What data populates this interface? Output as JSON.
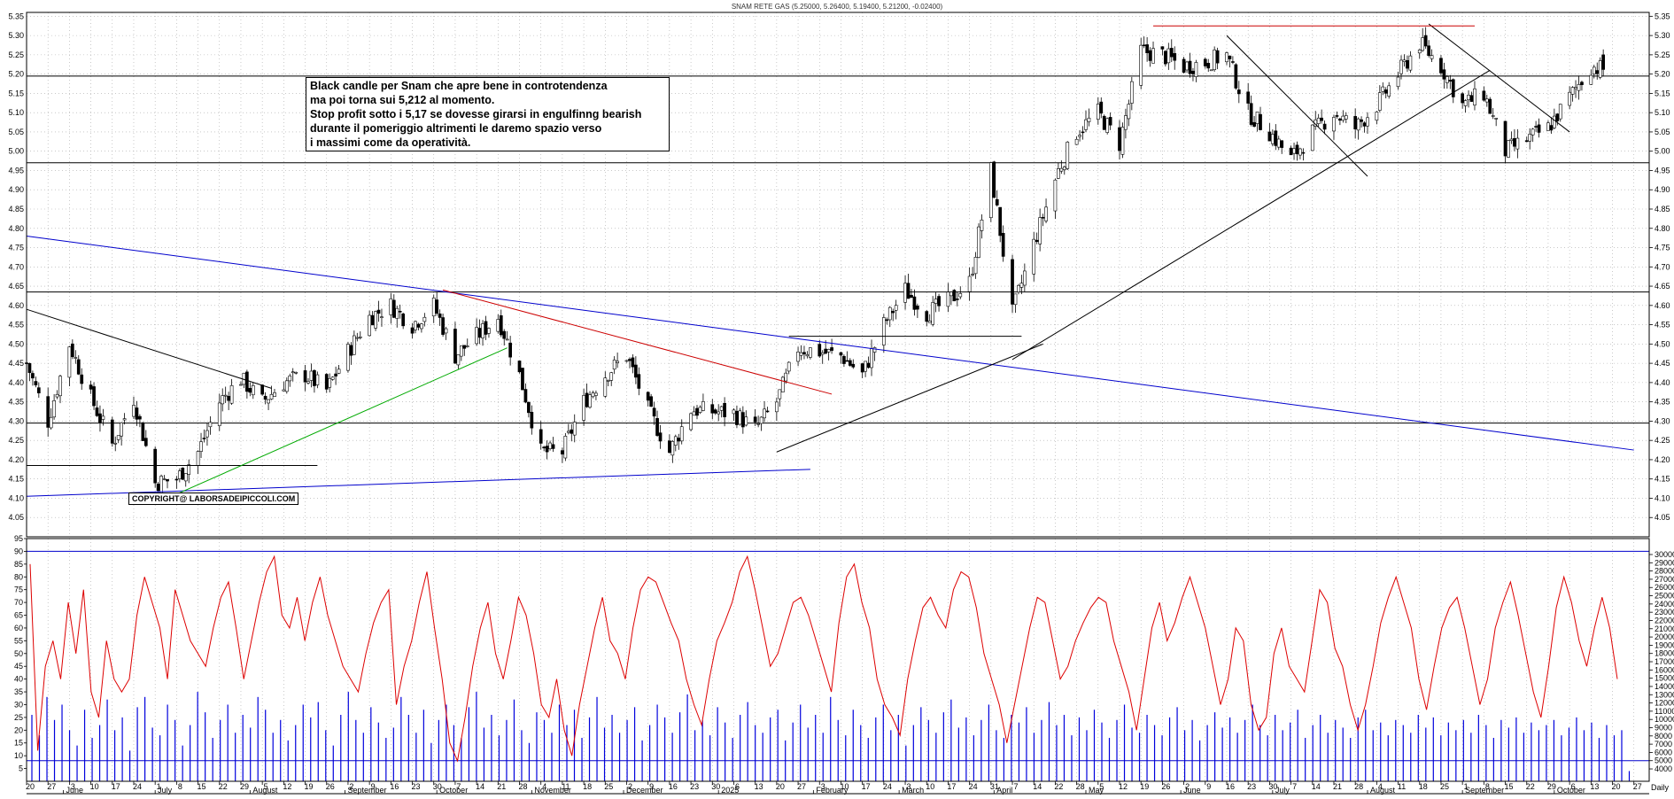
{
  "chart_data": [
    {
      "type": "candlestick",
      "title": "SNAM RETE GAS (5.25000, 5.26400, 5.19400, 5.21200, -0.02400)",
      "xlabel": "",
      "ylabel": "",
      "ylim": [
        4.0,
        5.36
      ],
      "y_ticks": [
        "4.05",
        "4.10",
        "4.15",
        "4.20",
        "4.25",
        "4.30",
        "4.35",
        "4.40",
        "4.45",
        "4.50",
        "4.55",
        "4.60",
        "4.65",
        "4.70",
        "4.75",
        "4.80",
        "4.85",
        "4.90",
        "4.95",
        "5.00",
        "5.05",
        "5.10",
        "5.15",
        "5.20",
        "5.25",
        "5.30",
        "5.35"
      ],
      "horizontal_levels": [
        4.97,
        5.195,
        4.635,
        4.295
      ],
      "close_path": [
        {
          "x": "2024-05-20",
          "y": 4.45
        },
        {
          "x": "2024-05-27",
          "y": 4.3
        },
        {
          "x": "2024-06-03",
          "y": 4.5
        },
        {
          "x": "2024-06-10",
          "y": 4.36
        },
        {
          "x": "2024-06-17",
          "y": 4.24
        },
        {
          "x": "2024-06-24",
          "y": 4.36
        },
        {
          "x": "2024-07-01",
          "y": 4.14
        },
        {
          "x": "2024-07-08",
          "y": 4.15
        },
        {
          "x": "2024-07-15",
          "y": 4.22
        },
        {
          "x": "2024-07-22",
          "y": 4.35
        },
        {
          "x": "2024-07-29",
          "y": 4.41
        },
        {
          "x": "2024-08-05",
          "y": 4.35
        },
        {
          "x": "2024-08-12",
          "y": 4.4
        },
        {
          "x": "2024-08-19",
          "y": 4.42
        },
        {
          "x": "2024-08-26",
          "y": 4.38
        },
        {
          "x": "2024-09-02",
          "y": 4.48
        },
        {
          "x": "2024-09-09",
          "y": 4.57
        },
        {
          "x": "2024-09-16",
          "y": 4.6
        },
        {
          "x": "2024-09-23",
          "y": 4.55
        },
        {
          "x": "2024-09-30",
          "y": 4.6
        },
        {
          "x": "2024-10-07",
          "y": 4.47
        },
        {
          "x": "2024-10-14",
          "y": 4.52
        },
        {
          "x": "2024-10-21",
          "y": 4.57
        },
        {
          "x": "2024-10-28",
          "y": 4.42
        },
        {
          "x": "2024-11-04",
          "y": 4.22
        },
        {
          "x": "2024-11-11",
          "y": 4.22
        },
        {
          "x": "2024-11-18",
          "y": 4.35
        },
        {
          "x": "2024-11-25",
          "y": 4.42
        },
        {
          "x": "2024-12-02",
          "y": 4.47
        },
        {
          "x": "2024-12-09",
          "y": 4.33
        },
        {
          "x": "2024-12-16",
          "y": 4.22
        },
        {
          "x": "2024-12-23",
          "y": 4.33
        },
        {
          "x": "2025-01-06",
          "y": 4.32
        },
        {
          "x": "2025-01-13",
          "y": 4.28
        },
        {
          "x": "2025-01-20",
          "y": 4.35
        },
        {
          "x": "2025-01-27",
          "y": 4.49
        },
        {
          "x": "2025-02-03",
          "y": 4.48
        },
        {
          "x": "2025-02-10",
          "y": 4.47
        },
        {
          "x": "2025-02-17",
          "y": 4.42
        },
        {
          "x": "2025-02-24",
          "y": 4.55
        },
        {
          "x": "2025-03-03",
          "y": 4.64
        },
        {
          "x": "2025-03-10",
          "y": 4.58
        },
        {
          "x": "2025-03-17",
          "y": 4.61
        },
        {
          "x": "2025-03-24",
          "y": 4.66
        },
        {
          "x": "2025-03-31",
          "y": 4.95
        },
        {
          "x": "2025-04-07",
          "y": 4.58
        },
        {
          "x": "2025-04-14",
          "y": 4.76
        },
        {
          "x": "2025-04-22",
          "y": 4.95
        },
        {
          "x": "2025-04-28",
          "y": 5.05
        },
        {
          "x": "2025-05-05",
          "y": 5.1
        },
        {
          "x": "2025-05-12",
          "y": 5.02
        },
        {
          "x": "2025-05-19",
          "y": 5.26
        },
        {
          "x": "2025-05-26",
          "y": 5.25
        },
        {
          "x": "2025-06-02",
          "y": 5.22
        },
        {
          "x": "2025-06-09",
          "y": 5.23
        },
        {
          "x": "2025-06-16",
          "y": 5.25
        },
        {
          "x": "2025-06-23",
          "y": 5.1
        },
        {
          "x": "2025-06-30",
          "y": 5.05
        },
        {
          "x": "2025-07-07",
          "y": 4.98
        },
        {
          "x": "2025-07-14",
          "y": 5.05
        },
        {
          "x": "2025-07-21",
          "y": 5.1
        },
        {
          "x": "2025-07-28",
          "y": 5.06
        },
        {
          "x": "2025-08-04",
          "y": 5.12
        },
        {
          "x": "2025-08-11",
          "y": 5.2
        },
        {
          "x": "2025-08-18",
          "y": 5.28
        },
        {
          "x": "2025-08-25",
          "y": 5.22
        },
        {
          "x": "2025-09-01",
          "y": 5.12
        },
        {
          "x": "2025-09-08",
          "y": 5.15
        },
        {
          "x": "2025-09-15",
          "y": 5.0
        },
        {
          "x": "2025-09-22",
          "y": 5.03
        },
        {
          "x": "2025-09-29",
          "y": 5.06
        },
        {
          "x": "2025-10-06",
          "y": 5.14
        },
        {
          "x": "2025-10-13",
          "y": 5.22
        },
        {
          "x": "2025-10-17",
          "y": 5.212
        }
      ],
      "trendlines": [
        {
          "color": "#0000cc",
          "points": [
            {
              "x": "2024-05-20",
              "y": 4.78
            },
            {
              "x": "2025-10-27",
              "y": 4.225
            }
          ]
        },
        {
          "color": "#0000cc",
          "points": [
            {
              "x": "2024-05-20",
              "y": 4.105
            },
            {
              "x": "2025-01-31",
              "y": 4.175
            }
          ]
        },
        {
          "color": "#000000",
          "points": [
            {
              "x": "2024-05-20",
              "y": 4.59
            },
            {
              "x": "2024-08-08",
              "y": 4.385
            }
          ]
        },
        {
          "color": "#000000",
          "points": [
            {
              "x": "2024-05-20",
              "y": 4.185
            },
            {
              "x": "2024-08-23",
              "y": 4.185
            }
          ]
        },
        {
          "color": "#00aa00",
          "points": [
            {
              "x": "2024-07-05",
              "y": 4.1
            },
            {
              "x": "2024-10-24",
              "y": 4.49
            }
          ]
        },
        {
          "color": "#cc0000",
          "points": [
            {
              "x": "2024-10-03",
              "y": 4.64
            },
            {
              "x": "2025-02-07",
              "y": 4.37
            }
          ]
        },
        {
          "color": "#000000",
          "points": [
            {
              "x": "2025-01-24",
              "y": 4.52
            },
            {
              "x": "2025-04-10",
              "y": 4.52
            }
          ]
        },
        {
          "color": "#000000",
          "points": [
            {
              "x": "2025-01-20",
              "y": 4.22
            },
            {
              "x": "2025-04-17",
              "y": 4.5
            }
          ]
        },
        {
          "color": "#000000",
          "points": [
            {
              "x": "2025-04-07",
              "y": 4.46
            },
            {
              "x": "2025-09-10",
              "y": 5.21
            }
          ]
        },
        {
          "color": "#000000",
          "points": [
            {
              "x": "2025-06-16",
              "y": 5.3
            },
            {
              "x": "2025-08-01",
              "y": 4.935
            }
          ]
        },
        {
          "color": "#000000",
          "points": [
            {
              "x": "2025-08-21",
              "y": 5.33
            },
            {
              "x": "2025-10-06",
              "y": 5.05
            }
          ]
        },
        {
          "color": "#cc0000",
          "points": [
            {
              "x": "2025-05-23",
              "y": 5.325
            },
            {
              "x": "2025-09-05",
              "y": 5.325
            }
          ]
        }
      ]
    },
    {
      "type": "line",
      "title": "",
      "ylim": [
        0,
        95
      ],
      "y_ticks": [
        "5",
        "10",
        "15",
        "20",
        "25",
        "30",
        "35",
        "40",
        "45",
        "50",
        "55",
        "60",
        "65",
        "70",
        "75",
        "80",
        "85",
        "90",
        "95"
      ],
      "horizontal_levels": [
        90
      ],
      "series": [
        {
          "color": "#dd0000",
          "values": [
            85,
            12,
            45,
            55,
            40,
            70,
            50,
            75,
            35,
            25,
            55,
            40,
            35,
            40,
            65,
            80,
            70,
            60,
            40,
            75,
            65,
            55,
            50,
            45,
            60,
            72,
            78,
            60,
            40,
            55,
            70,
            82,
            88,
            65,
            60,
            72,
            55,
            70,
            80,
            65,
            55,
            45,
            40,
            35,
            50,
            62,
            70,
            75,
            30,
            45,
            55,
            70,
            82,
            60,
            40,
            15,
            8,
            25,
            45,
            60,
            70,
            50,
            40,
            55,
            72,
            65,
            50,
            30,
            25,
            40,
            20,
            10,
            30,
            45,
            60,
            72,
            55,
            50,
            40,
            60,
            75,
            80,
            78,
            70,
            62,
            55,
            40,
            30,
            22,
            40,
            55,
            62,
            70,
            82,
            88,
            75,
            60,
            45,
            50,
            60,
            70,
            72,
            65,
            55,
            45,
            35,
            62,
            80,
            85,
            70,
            60,
            40,
            30,
            25,
            18,
            40,
            55,
            68,
            72,
            65,
            60,
            75,
            82,
            80,
            68,
            50,
            40,
            30,
            15,
            30,
            45,
            60,
            72,
            70,
            55,
            40,
            45,
            55,
            62,
            68,
            72,
            70,
            55,
            45,
            35,
            20,
            40,
            60,
            70,
            55,
            62,
            72,
            80,
            70,
            60,
            45,
            30,
            40,
            60,
            55,
            30,
            20,
            25,
            50,
            60,
            45,
            40,
            35,
            55,
            75,
            70,
            52,
            45,
            30,
            20,
            30,
            45,
            62,
            72,
            80,
            70,
            60,
            40,
            28,
            45,
            60,
            68,
            72,
            60,
            45,
            30,
            40,
            60,
            70,
            78,
            65,
            50,
            35,
            25,
            45,
            68,
            80,
            70,
            55,
            45,
            60,
            72,
            60,
            40
          ]
        },
        {
          "color": "#0000dd",
          "values": [
            26,
            18,
            33,
            24,
            30,
            20,
            14,
            28,
            17,
            22,
            32,
            20,
            25,
            12,
            29,
            33,
            21,
            18,
            30,
            24,
            14,
            22,
            35,
            27,
            17,
            24,
            30,
            19,
            26,
            21,
            33,
            28,
            19,
            24,
            16,
            22,
            30,
            25,
            31,
            20,
            14,
            26,
            35,
            24,
            19,
            29,
            23,
            17,
            21,
            33,
            26,
            19,
            28,
            15,
            24,
            30,
            22,
            17,
            29,
            35,
            21,
            26,
            18,
            24,
            32,
            20,
            15,
            27,
            24,
            19,
            30,
            22,
            28,
            17,
            25,
            33,
            21,
            26,
            19,
            24,
            29,
            16,
            22,
            30,
            25,
            19,
            27,
            34,
            20,
            24,
            18,
            29,
            23,
            17,
            26,
            31,
            22,
            19,
            25,
            28,
            16,
            23,
            30,
            21,
            26,
            19,
            33,
            24,
            18,
            28,
            22,
            17,
            25,
            30,
            20,
            26,
            14,
            22,
            29,
            24,
            19,
            27,
            32,
            21,
            25,
            18,
            24,
            30,
            20,
            17,
            26,
            23,
            29,
            19,
            24,
            31,
            22,
            26,
            18,
            25,
            20,
            28,
            23,
            17,
            24,
            30,
            21,
            19,
            26,
            22,
            18,
            25,
            29,
            20,
            24,
            16,
            22,
            27,
            21,
            25,
            19,
            24,
            30,
            22,
            18,
            26,
            20,
            23,
            28,
            17,
            22,
            26,
            19,
            24,
            21,
            17,
            25,
            28,
            20,
            23,
            18,
            24,
            22,
            19,
            26,
            21,
            25,
            18,
            23,
            20,
            24,
            19,
            26,
            22,
            17,
            24,
            21,
            25,
            19,
            23,
            20,
            22,
            24,
            18,
            21,
            25,
            20,
            23,
            17,
            22,
            18,
            20,
            4
          ]
        }
      ],
      "y2_ticks": [
        "4000",
        "5000",
        "6000",
        "7000",
        "8000",
        "9000",
        "10000",
        "11000",
        "12000",
        "13000",
        "14000",
        "15000",
        "16000",
        "17000",
        "18000",
        "19000",
        "20000",
        "21000",
        "22000",
        "23000",
        "24000",
        "25000",
        "26000",
        "27000",
        "28000",
        "29000",
        "30000"
      ],
      "y2_levels": [
        5000
      ]
    }
  ],
  "x_axis": {
    "day_labels": [
      "20",
      "27",
      "3",
      "10",
      "17",
      "24",
      "1",
      "8",
      "15",
      "22",
      "29",
      "5",
      "12",
      "19",
      "26",
      "2",
      "9",
      "16",
      "23",
      "30",
      "7",
      "14",
      "21",
      "28",
      "4",
      "11",
      "18",
      "25",
      "2",
      "9",
      "16",
      "23",
      "30",
      "6",
      "13",
      "20",
      "27",
      "3",
      "10",
      "17",
      "24",
      "3",
      "10",
      "17",
      "24",
      "31",
      "7",
      "14",
      "22",
      "28",
      "5",
      "12",
      "19",
      "26",
      "2",
      "9",
      "16",
      "23",
      "30",
      "7",
      "14",
      "21",
      "28",
      "4",
      "11",
      "18",
      "25",
      "1",
      "8",
      "15",
      "22",
      "29",
      "6",
      "13",
      "20",
      "27"
    ],
    "month_labels": [
      "June",
      "July",
      "August",
      "September",
      "October",
      "November",
      "December",
      "2025",
      "February",
      "March",
      "April",
      "May",
      "June",
      "July",
      "August",
      "September",
      "October"
    ],
    "corner_label": "Daily"
  },
  "annotation": {
    "lines": [
      "Black candle per Snam che apre bene in controtendenza",
      "ma poi torna sui 5,212 al momento.",
      "Stop profit sotto i 5,17 se dovesse girarsi in engulfinng bearish",
      "durante il pomeriggio altrimenti le daremo spazio verso",
      "i massimi come da operatività."
    ]
  },
  "copyright": "COPYRIGHT@ LABORSADEIPICCOLI.COM",
  "colors": {
    "candle": "#000000",
    "trend_blue": "#0000cc",
    "trend_red": "#cc0000",
    "trend_green": "#00aa00",
    "oscillator": "#dd0000",
    "volume": "#0000dd"
  }
}
